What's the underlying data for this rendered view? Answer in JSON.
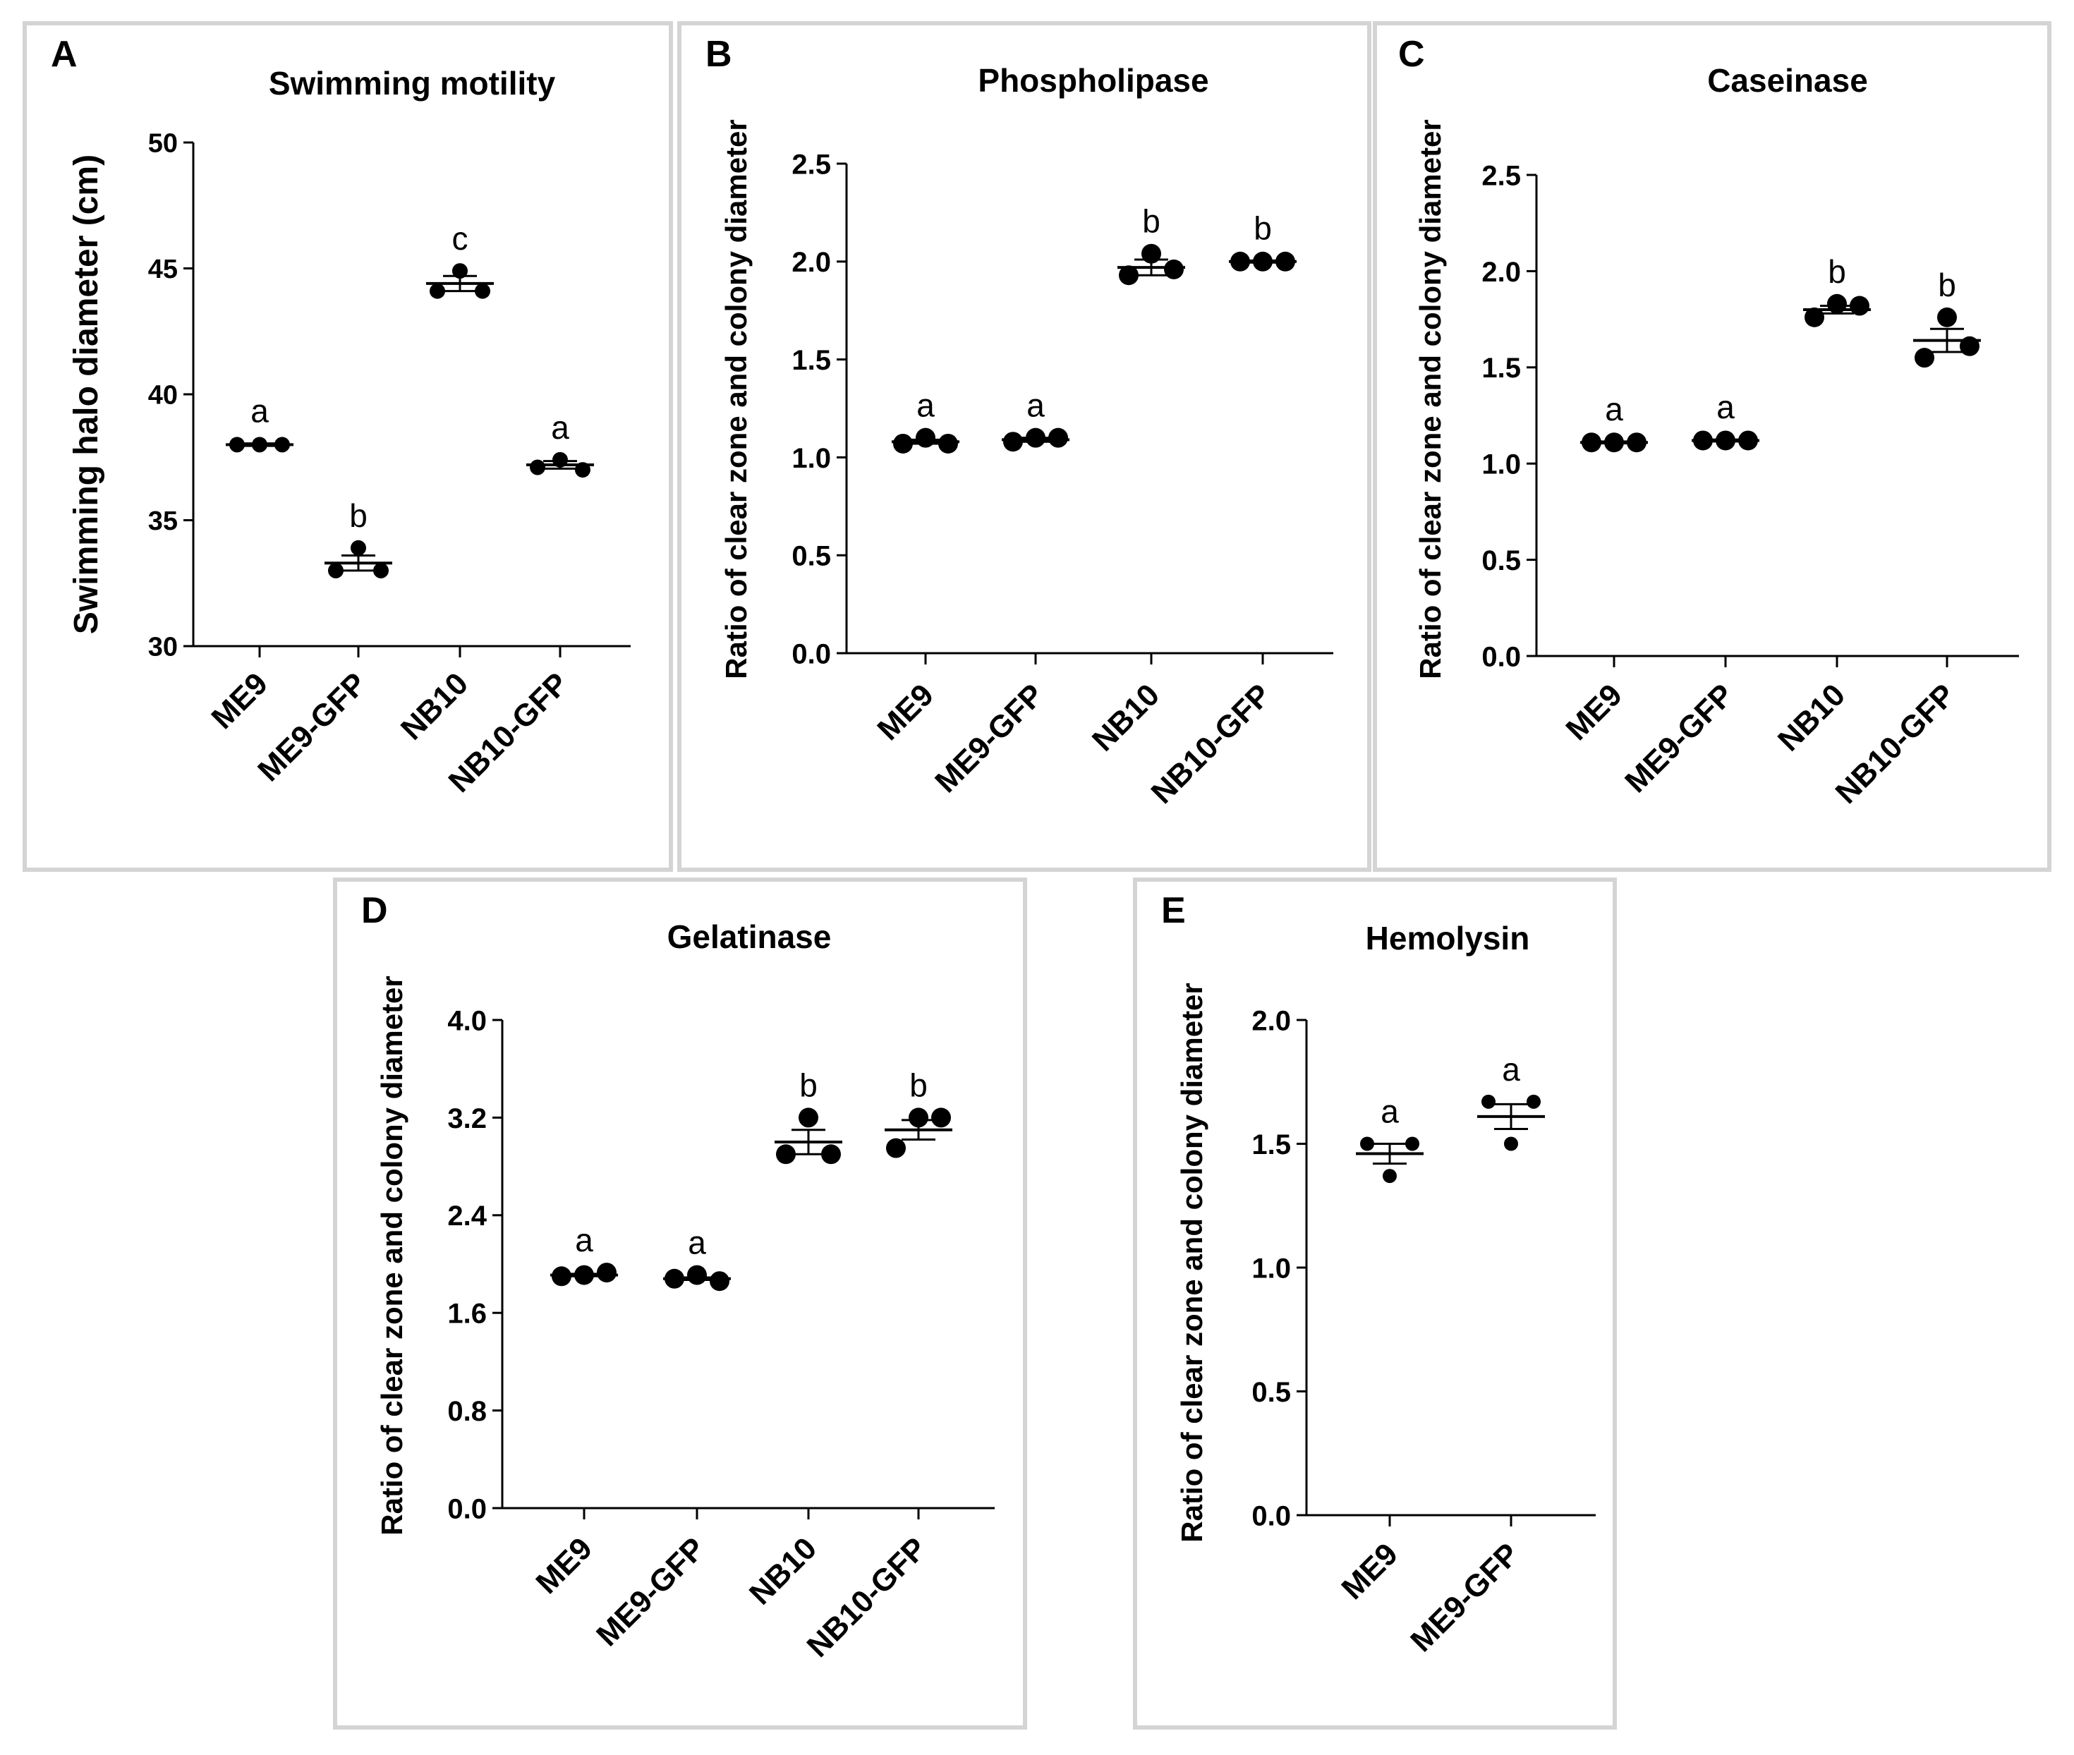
{
  "chart_data": [
    {
      "panel": "A",
      "type": "scatter",
      "title": "Swimming motility",
      "ylabel": "Swimming halo diameter (cm)",
      "xlabel": "",
      "ylim": [
        30,
        50
      ],
      "yticks": [
        "30",
        "35",
        "40",
        "45",
        "50"
      ],
      "categories": [
        "ME9",
        "ME9-GFP",
        "NB10",
        "NB10-GFP"
      ],
      "points": [
        [
          38.0,
          38.0,
          38.0
        ],
        [
          33.0,
          33.9,
          33.0
        ],
        [
          44.1,
          44.9,
          44.1
        ],
        [
          37.1,
          37.4,
          37.0
        ]
      ],
      "mean": [
        38.0,
        33.3,
        44.4,
        37.2
      ],
      "sem": [
        0.05,
        0.3,
        0.3,
        0.15
      ],
      "letters": [
        "a",
        "b",
        "c",
        "a"
      ]
    },
    {
      "panel": "B",
      "type": "scatter",
      "title": "Phospholipase",
      "ylabel": "Ratio of clear zone and colony diameter",
      "xlabel": "",
      "ylim": [
        0,
        2.5
      ],
      "yticks": [
        "0.0",
        "0.5",
        "1.0",
        "1.5",
        "2.0",
        "2.5"
      ],
      "categories": [
        "ME9",
        "ME9-GFP",
        "NB10",
        "NB10-GFP"
      ],
      "points": [
        [
          1.07,
          1.1,
          1.07
        ],
        [
          1.08,
          1.1,
          1.1
        ],
        [
          1.93,
          2.04,
          1.96
        ],
        [
          2.0,
          2.0,
          2.0
        ]
      ],
      "mean": [
        1.08,
        1.09,
        1.97,
        2.0
      ],
      "sem": [
        0.01,
        0.01,
        0.04,
        0.005
      ],
      "letters": [
        "a",
        "a",
        "b",
        "b"
      ]
    },
    {
      "panel": "C",
      "type": "scatter",
      "title": "Caseinase",
      "ylabel": "Ratio of clear zone and colony diameter",
      "xlabel": "",
      "ylim": [
        0,
        2.5
      ],
      "yticks": [
        "0.0",
        "0.5",
        "1.0",
        "1.5",
        "2.0",
        "2.5"
      ],
      "categories": [
        "ME9",
        "ME9-GFP",
        "NB10",
        "NB10-GFP"
      ],
      "points": [
        [
          1.11,
          1.11,
          1.11
        ],
        [
          1.12,
          1.12,
          1.12
        ],
        [
          1.76,
          1.83,
          1.82
        ],
        [
          1.55,
          1.76,
          1.61
        ]
      ],
      "mean": [
        1.11,
        1.12,
        1.8,
        1.64
      ],
      "sem": [
        0.005,
        0.005,
        0.02,
        0.06
      ],
      "letters": [
        "a",
        "a",
        "b",
        "b"
      ]
    },
    {
      "panel": "D",
      "type": "scatter",
      "title": "Gelatinase",
      "ylabel": "Ratio of clear zone and colony diameter",
      "xlabel": "",
      "ylim": [
        0,
        4.0
      ],
      "yticks": [
        "0.0",
        "0.8",
        "1.6",
        "2.4",
        "3.2",
        "4.0"
      ],
      "categories": [
        "ME9",
        "ME9-GFP",
        "NB10",
        "NB10-GFP"
      ],
      "points": [
        [
          1.9,
          1.91,
          1.93
        ],
        [
          1.88,
          1.91,
          1.86
        ],
        [
          2.9,
          3.2,
          2.9
        ],
        [
          2.95,
          3.2,
          3.2
        ]
      ],
      "mean": [
        1.91,
        1.88,
        3.0,
        3.1
      ],
      "sem": [
        0.01,
        0.01,
        0.1,
        0.08
      ],
      "letters": [
        "a",
        "a",
        "b",
        "b"
      ]
    },
    {
      "panel": "E",
      "type": "scatter",
      "title": "Hemolysin",
      "ylabel": "Ratio of clear zone and colony diameter",
      "xlabel": "",
      "ylim": [
        0,
        2.0
      ],
      "yticks": [
        "0.0",
        "0.5",
        "1.0",
        "1.5",
        "2.0"
      ],
      "categories": [
        "ME9",
        "ME9-GFP"
      ],
      "points": [
        [
          1.5,
          1.37,
          1.5
        ],
        [
          1.67,
          1.5,
          1.67
        ]
      ],
      "mean": [
        1.46,
        1.61
      ],
      "sem": [
        0.04,
        0.05
      ],
      "letters": [
        "a",
        "a"
      ]
    }
  ]
}
